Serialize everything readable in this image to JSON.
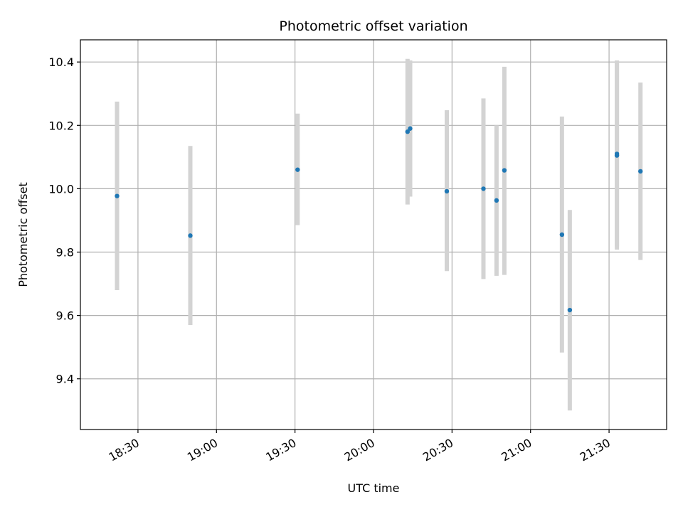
{
  "chart_data": {
    "type": "scatter",
    "title": "Photometric offset variation",
    "xlabel": "UTC time",
    "ylabel": "Photometric offset",
    "grid": true,
    "legend": "none",
    "x_ticks": [
      "18:30",
      "19:00",
      "19:30",
      "20:00",
      "20:30",
      "21:00",
      "21:30"
    ],
    "y_ticks": [
      "9.4",
      "9.6",
      "9.8",
      "10.0",
      "10.2",
      "10.4"
    ],
    "xlim": [
      "18:08",
      "21:52"
    ],
    "ylim": [
      9.24,
      10.47
    ],
    "colors": {
      "points": "#1f77b4",
      "errorbars": "#d3d3d3",
      "grid": "#b0b0b0"
    },
    "series": [
      {
        "points": [
          {
            "x": "18:22",
            "y": 9.977,
            "ylo": 9.68,
            "yhi": 10.275
          },
          {
            "x": "18:50",
            "y": 9.852,
            "ylo": 9.57,
            "yhi": 10.135
          },
          {
            "x": "19:31",
            "y": 10.06,
            "ylo": 9.885,
            "yhi": 10.237
          },
          {
            "x": "20:13",
            "y": 10.18,
            "ylo": 9.95,
            "yhi": 10.41
          },
          {
            "x": "20:14",
            "y": 10.19,
            "ylo": 9.975,
            "yhi": 10.405
          },
          {
            "x": "20:28",
            "y": 9.992,
            "ylo": 9.74,
            "yhi": 10.248
          },
          {
            "x": "20:42",
            "y": 10.0,
            "ylo": 9.715,
            "yhi": 10.285
          },
          {
            "x": "20:47",
            "y": 9.963,
            "ylo": 9.725,
            "yhi": 10.2
          },
          {
            "x": "20:50",
            "y": 10.058,
            "ylo": 9.728,
            "yhi": 10.385
          },
          {
            "x": "21:12",
            "y": 9.855,
            "ylo": 9.483,
            "yhi": 10.228
          },
          {
            "x": "21:15",
            "y": 9.617,
            "ylo": 9.3,
            "yhi": 9.933
          },
          {
            "x": "21:33",
            "y": 10.105,
            "ylo": 9.808,
            "yhi": 10.405
          },
          {
            "x": "21:33",
            "y": 10.11,
            "ylo": 9.818,
            "yhi": 10.405
          },
          {
            "x": "21:42",
            "y": 10.055,
            "ylo": 9.775,
            "yhi": 10.335
          }
        ]
      }
    ]
  }
}
